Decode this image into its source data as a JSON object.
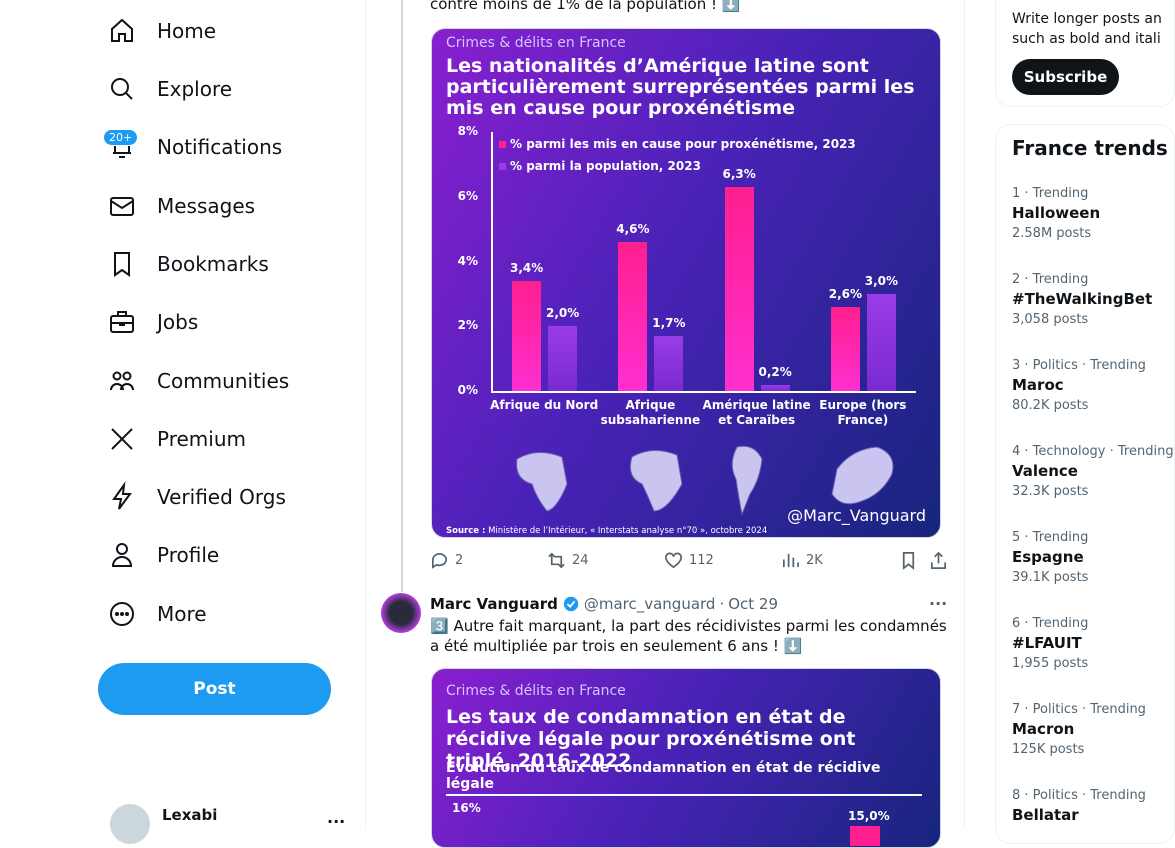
{
  "nav": {
    "items": [
      "Home",
      "Explore",
      "Notifications",
      "Messages",
      "Bookmarks",
      "Jobs",
      "Communities",
      "Premium",
      "Verified Orgs",
      "Profile",
      "More"
    ],
    "badge": "20+",
    "post": "Post"
  },
  "account": {
    "name": "Lexabi"
  },
  "tweets": [
    {
      "text": "contre moins de 1% de la population ! ⬇️",
      "image": {
        "kicker": "Crimes & délits en France",
        "chart_data": {
          "type": "bar",
          "title": "Les nationalités d’Amérique latine sont particulièrement surreprésentées parmi les mis en cause pour proxénétisme",
          "categories": [
            "Afrique du Nord",
            "Afrique subsaharienne",
            "Amérique latine et Caraïbes",
            "Europe (hors France)"
          ],
          "series": [
            {
              "name": "% parmi les mis en cause pour proxénétisme, 2023",
              "color": "#ff1f8e",
              "values": [
                3.4,
                4.6,
                6.3,
                2.6
              ],
              "value_labels": [
                "3,4%",
                "4,6%",
                "6,3%",
                "2,6%"
              ]
            },
            {
              "name": "% parmi la population, 2023",
              "color": "#9a3ce6",
              "values": [
                2.0,
                1.7,
                0.2,
                3.0
              ],
              "value_labels": [
                "2,0%",
                "1,7%",
                "0,2%",
                "3,0%"
              ]
            }
          ],
          "ylim": [
            0,
            8
          ],
          "yticks": [
            {
              "value": 0,
              "label": "0%"
            },
            {
              "value": 2,
              "label": "2%"
            },
            {
              "value": 4,
              "label": "4%"
            },
            {
              "value": 6,
              "label": "6%"
            },
            {
              "value": 8,
              "label": "8%"
            }
          ]
        },
        "watermark": "@Marc_Vanguard",
        "source_label": "Source :",
        "source": "Ministère de l’Intérieur, « Interstats analyse n°70 », octobre 2024"
      },
      "stats": {
        "replies": 2,
        "reposts": 24,
        "likes": 112,
        "views": "2K"
      }
    },
    {
      "author": "Marc Vanguard",
      "handle": "@marc_vanguard",
      "separator": "·",
      "date": "Oct 29",
      "text": "3️⃣ Autre fait marquant, la part des récidivistes parmi les condamnés a été multipliée par trois en seulement 6 ans ! ⬇️",
      "image": {
        "kicker": "Crimes & délits en France",
        "title": "Les taux de condamnation en état de récidive légale pour proxénétisme ont triplé, 2016-2022",
        "subtitle": "Évolution du taux de condamnation en état de récidive légale",
        "ytick": "16%",
        "value_label": "15,0%"
      }
    }
  ],
  "premium": {
    "lines": [
      "Write longer posts an",
      "such as bold and itali"
    ],
    "button": "Subscribe"
  },
  "trends": {
    "title": "France trends",
    "items": [
      {
        "meta": "1 · Trending",
        "name": "Halloween",
        "posts": "2.58M posts"
      },
      {
        "meta": "2 · Trending",
        "name": "#TheWalkingBet",
        "posts": "3,058 posts"
      },
      {
        "meta": "3 · Politics · Trending",
        "name": "Maroc",
        "posts": "80.2K posts"
      },
      {
        "meta": "4 · Technology · Trending",
        "name": "Valence",
        "posts": "32.3K posts"
      },
      {
        "meta": "5 · Trending",
        "name": "Espagne",
        "posts": "39.1K posts"
      },
      {
        "meta": "6 · Trending",
        "name": "#LFAUIT",
        "posts": "1,955 posts"
      },
      {
        "meta": "7 · Politics · Trending",
        "name": "Macron",
        "posts": "125K posts"
      },
      {
        "meta": "8 · Politics · Trending",
        "name": "Bellatar",
        "posts": ""
      }
    ]
  }
}
